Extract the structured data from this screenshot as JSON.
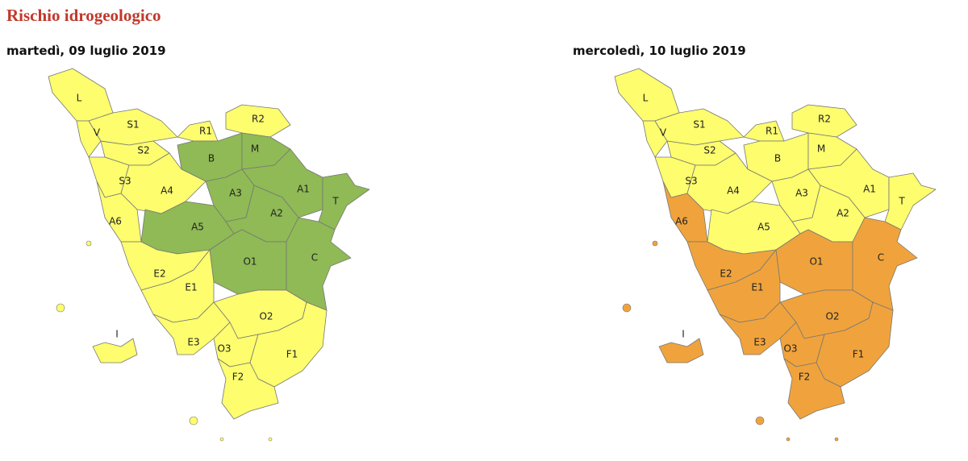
{
  "header": {
    "title": "Rischio idrogeologico"
  },
  "maps": [
    {
      "date": "martedì, 09 luglio 2019",
      "zones": [
        {
          "label": "L",
          "color": "#fdfd6e"
        },
        {
          "label": "V",
          "color": "#fdfd6e"
        },
        {
          "label": "S1",
          "color": "#fdfd6e"
        },
        {
          "label": "S2",
          "color": "#fdfd6e"
        },
        {
          "label": "S3",
          "color": "#fdfd6e"
        },
        {
          "label": "R1",
          "color": "#fdfd6e"
        },
        {
          "label": "R2",
          "color": "#fdfd6e"
        },
        {
          "label": "B",
          "color": "#8fba55"
        },
        {
          "label": "M",
          "color": "#8fba55"
        },
        {
          "label": "A4",
          "color": "#fdfd6e"
        },
        {
          "label": "A3",
          "color": "#8fba55"
        },
        {
          "label": "A1",
          "color": "#8fba55"
        },
        {
          "label": "T",
          "color": "#8fba55"
        },
        {
          "label": "A6",
          "color": "#fdfd6e"
        },
        {
          "label": "A5",
          "color": "#8fba55"
        },
        {
          "label": "A2",
          "color": "#8fba55"
        },
        {
          "label": "O1",
          "color": "#8fba55"
        },
        {
          "label": "C",
          "color": "#8fba55"
        },
        {
          "label": "E2",
          "color": "#fdfd6e"
        },
        {
          "label": "E1",
          "color": "#fdfd6e"
        },
        {
          "label": "O2",
          "color": "#fdfd6e"
        },
        {
          "label": "E3",
          "color": "#fdfd6e"
        },
        {
          "label": "O3",
          "color": "#fdfd6e"
        },
        {
          "label": "F1",
          "color": "#fdfd6e"
        },
        {
          "label": "F2",
          "color": "#fdfd6e"
        },
        {
          "label": "I",
          "color": "#fdfd6e"
        }
      ]
    },
    {
      "date": "mercoledì, 10 luglio 2019",
      "zones": [
        {
          "label": "L",
          "color": "#fdfd6e"
        },
        {
          "label": "V",
          "color": "#fdfd6e"
        },
        {
          "label": "S1",
          "color": "#fdfd6e"
        },
        {
          "label": "S2",
          "color": "#fdfd6e"
        },
        {
          "label": "S3",
          "color": "#fdfd6e"
        },
        {
          "label": "R1",
          "color": "#fdfd6e"
        },
        {
          "label": "R2",
          "color": "#fdfd6e"
        },
        {
          "label": "B",
          "color": "#fdfd6e"
        },
        {
          "label": "M",
          "color": "#fdfd6e"
        },
        {
          "label": "A4",
          "color": "#fdfd6e"
        },
        {
          "label": "A3",
          "color": "#fdfd6e"
        },
        {
          "label": "A1",
          "color": "#fdfd6e"
        },
        {
          "label": "T",
          "color": "#fdfd6e"
        },
        {
          "label": "A6",
          "color": "#f0a33c"
        },
        {
          "label": "A5",
          "color": "#fdfd6e"
        },
        {
          "label": "A2",
          "color": "#fdfd6e"
        },
        {
          "label": "O1",
          "color": "#f0a33c"
        },
        {
          "label": "C",
          "color": "#f0a33c"
        },
        {
          "label": "E2",
          "color": "#f0a33c"
        },
        {
          "label": "E1",
          "color": "#f0a33c"
        },
        {
          "label": "O2",
          "color": "#f0a33c"
        },
        {
          "label": "E3",
          "color": "#f0a33c"
        },
        {
          "label": "O3",
          "color": "#f0a33c"
        },
        {
          "label": "F1",
          "color": "#f0a33c"
        },
        {
          "label": "F2",
          "color": "#f0a33c"
        },
        {
          "label": "I",
          "color": "#f0a33c"
        }
      ]
    }
  ]
}
